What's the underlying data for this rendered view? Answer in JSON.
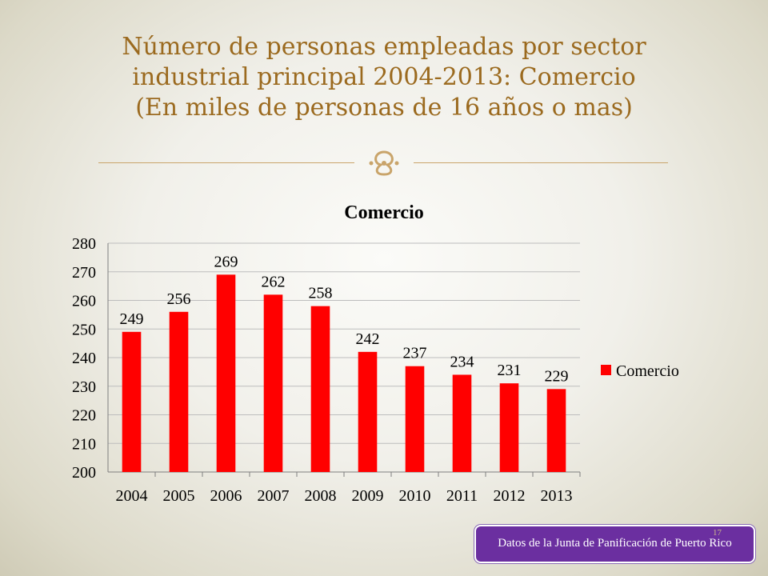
{
  "slide": {
    "title_lines": [
      "Número de personas empleadas por sector",
      "industrial principal 2004-2013: Comercio",
      "(En miles de personas de 16 años o mas)"
    ],
    "ornament_icon": "fleur-ornament-icon",
    "source_note": "Datos de la Junta de Panificación de Puerto Rico",
    "page_number": "17"
  },
  "chart_data": {
    "type": "bar",
    "title": "Comercio",
    "categories": [
      "2004",
      "2005",
      "2006",
      "2007",
      "2008",
      "2009",
      "2010",
      "2011",
      "2012",
      "2013"
    ],
    "series": [
      {
        "name": "Comercio",
        "values": [
          249,
          256,
          269,
          262,
          258,
          242,
          237,
          234,
          231,
          229
        ],
        "color": "#ff0000"
      }
    ],
    "yticks": [
      200,
      210,
      220,
      230,
      240,
      250,
      260,
      270,
      280
    ],
    "ylim": [
      200,
      280
    ],
    "grid": true,
    "legend": "right",
    "data_labels": true
  }
}
